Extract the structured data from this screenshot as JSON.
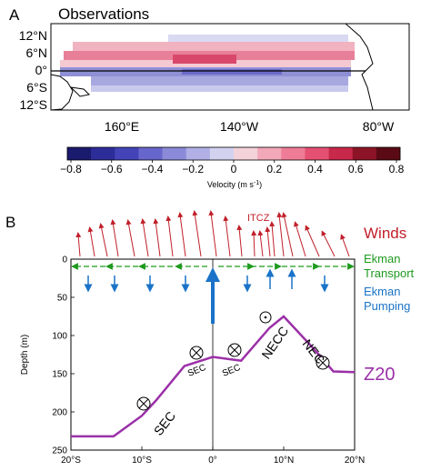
{
  "panel_a": {
    "label": "A",
    "title": "Observations",
    "lat_labels": [
      "12°N",
      "6°N",
      "0°",
      "6°S",
      "12°S"
    ],
    "lon_labels": [
      "160°E",
      "140°W",
      "80°W"
    ],
    "colorbar": {
      "ticks": [
        "−0.8",
        "−0.6",
        "−0.4",
        "−0.2",
        "0",
        "0.2",
        "0.4",
        "0.6",
        "0.8"
      ],
      "label": "Velocity (m s",
      "label_exp": "-1",
      "label_close": ")",
      "colors": [
        "#1a1a6e",
        "#2d2d9a",
        "#4444b8",
        "#6666cc",
        "#8a8ad8",
        "#b0b0e6",
        "#d2d2f0",
        "#f4d2da",
        "#f2a8b8",
        "#ee7c96",
        "#e45072",
        "#c8284a",
        "#8c1426",
        "#5a0a14"
      ]
    }
  },
  "panel_b": {
    "label": "B",
    "winds_label": "Winds",
    "itcz_label": "ITCZ",
    "ekman_transport_label": [
      "Ekman",
      "Transport"
    ],
    "ekman_pumping_label": [
      "Ekman",
      "Pumping"
    ],
    "z20_label": "Z20",
    "ylabel": "Depth (m)",
    "y_ticks": [
      "0",
      "50",
      "100",
      "150",
      "200",
      "250"
    ],
    "x_ticks": [
      "20°S",
      "10°S",
      "0°",
      "10°N",
      "20°N"
    ],
    "currents": [
      "SEC",
      "SEC",
      "SEC",
      "NECC",
      "NEC"
    ],
    "colors": {
      "winds": "#c0202a",
      "ekman_transport": "#1e9a1e",
      "ekman_pumping": "#1a73c8",
      "z20": "#9b30a8"
    }
  },
  "chart_data": {
    "type": "line",
    "x": [
      -20,
      -14,
      -10,
      -8,
      -4,
      0,
      4,
      8,
      10,
      14,
      17,
      20
    ],
    "values": [
      232,
      232,
      205,
      185,
      140,
      128,
      133,
      90,
      75,
      115,
      147,
      148
    ],
    "ylim": [
      250,
      0
    ],
    "xlim": [
      -20,
      20
    ]
  }
}
